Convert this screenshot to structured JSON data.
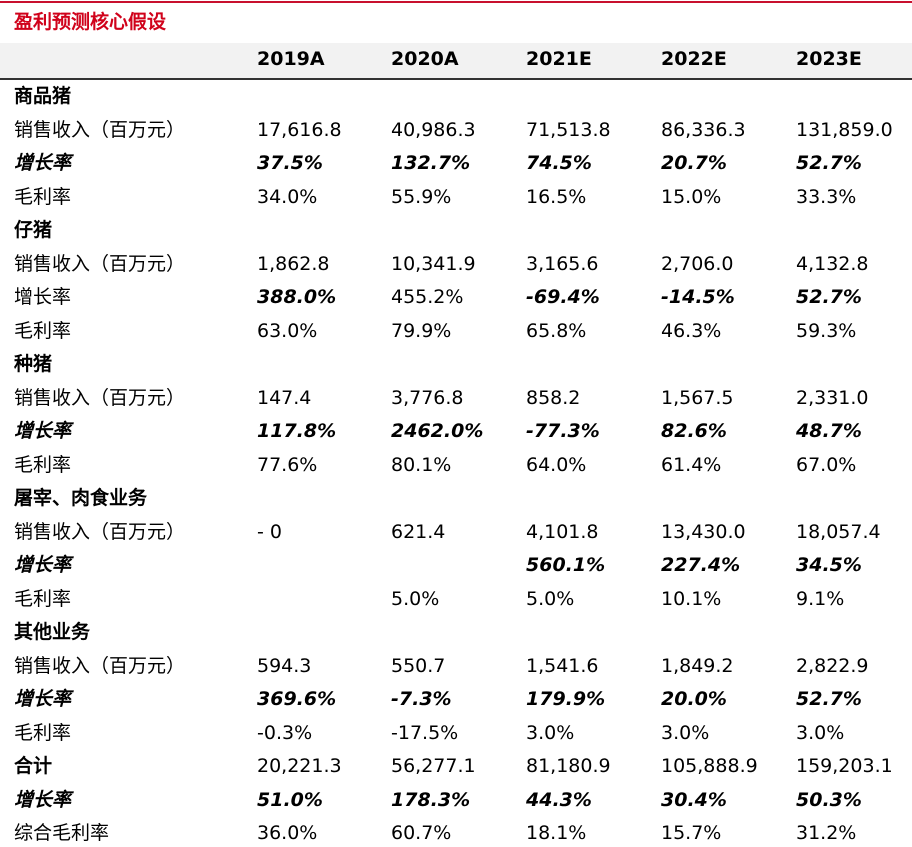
{
  "title": "盈利预测核心假设",
  "columns": [
    "2019A",
    "2020A",
    "2021E",
    "2022E",
    "2023E"
  ],
  "rows": [
    {
      "label": "商品猪",
      "kind": "section",
      "values": []
    },
    {
      "label": "销售收入（百万元）",
      "kind": "normal",
      "values": [
        "17,616.8",
        "40,986.3",
        "71,513.8",
        "86,336.3",
        "131,859.0"
      ]
    },
    {
      "label": "增长率",
      "kind": "italic",
      "values": [
        "37.5%",
        "132.7%",
        "74.5%",
        "20.7%",
        "52.7%"
      ]
    },
    {
      "label": "毛利率",
      "kind": "normal",
      "values": [
        "34.0%",
        "55.9%",
        "16.5%",
        "15.0%",
        "33.3%"
      ]
    },
    {
      "label": "仔猪",
      "kind": "section",
      "values": []
    },
    {
      "label": "销售收入（百万元）",
      "kind": "normal",
      "values": [
        "1,862.8",
        "10,341.9",
        "3,165.6",
        "2,706.0",
        "4,132.8"
      ]
    },
    {
      "label": "增长率",
      "kind": "normal",
      "values": [
        "388.0%",
        "455.2%",
        "-69.4%",
        "-14.5%",
        "52.7%"
      ],
      "italic_values": [
        true,
        false,
        true,
        true,
        true
      ]
    },
    {
      "label": "毛利率",
      "kind": "normal",
      "values": [
        "63.0%",
        "79.9%",
        "65.8%",
        "46.3%",
        "59.3%"
      ]
    },
    {
      "label": "种猪",
      "kind": "section",
      "values": []
    },
    {
      "label": "销售收入（百万元）",
      "kind": "normal",
      "values": [
        "147.4",
        "3,776.8",
        "858.2",
        "1,567.5",
        "2,331.0"
      ]
    },
    {
      "label": "增长率",
      "kind": "italic",
      "values": [
        "117.8%",
        "2462.0%",
        "-77.3%",
        "82.6%",
        "48.7%"
      ]
    },
    {
      "label": "毛利率",
      "kind": "normal",
      "values": [
        "77.6%",
        "80.1%",
        "64.0%",
        "61.4%",
        "67.0%"
      ]
    },
    {
      "label": "屠宰、肉食业务",
      "kind": "section",
      "values": []
    },
    {
      "label": "销售收入（百万元）",
      "kind": "normal",
      "values": [
        "- 0",
        "621.4",
        "4,101.8",
        "13,430.0",
        "18,057.4"
      ]
    },
    {
      "label": "增长率",
      "kind": "italic",
      "values": [
        "",
        "",
        "560.1%",
        "227.4%",
        "34.5%"
      ]
    },
    {
      "label": "毛利率",
      "kind": "normal",
      "values": [
        "",
        "5.0%",
        "5.0%",
        "10.1%",
        "9.1%"
      ]
    },
    {
      "label": "其他业务",
      "kind": "section",
      "values": []
    },
    {
      "label": "销售收入（百万元）",
      "kind": "normal",
      "values": [
        "594.3",
        "550.7",
        "1,541.6",
        "1,849.2",
        "2,822.9"
      ]
    },
    {
      "label": "增长率",
      "kind": "italic",
      "values": [
        "369.6%",
        "-7.3%",
        "179.9%",
        "20.0%",
        "52.7%"
      ]
    },
    {
      "label": "毛利率",
      "kind": "normal",
      "values": [
        "-0.3%",
        "-17.5%",
        "3.0%",
        "3.0%",
        "3.0%"
      ]
    },
    {
      "label": "合计",
      "kind": "total",
      "values": [
        "20,221.3",
        "56,277.1",
        "81,180.9",
        "105,888.9",
        "159,203.1"
      ]
    },
    {
      "label": "增长率",
      "kind": "italic",
      "values": [
        "51.0%",
        "178.3%",
        "44.3%",
        "30.4%",
        "50.3%"
      ]
    },
    {
      "label": "综合毛利率",
      "kind": "normal",
      "values": [
        "36.0%",
        "60.7%",
        "18.1%",
        "15.7%",
        "31.2%"
      ]
    }
  ]
}
